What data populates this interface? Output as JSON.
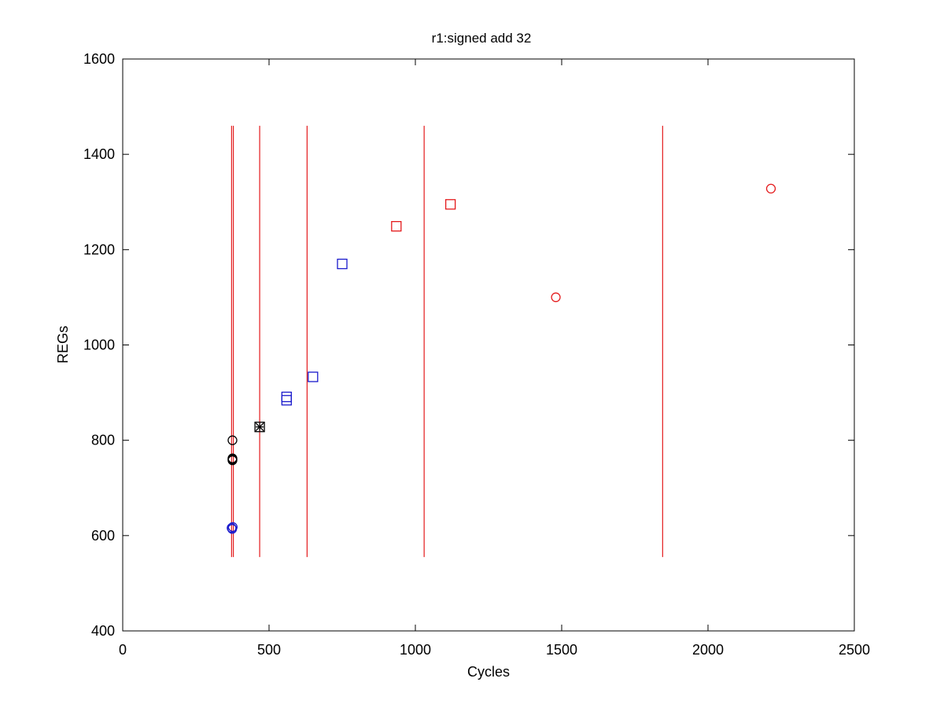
{
  "chart_data": {
    "type": "scatter",
    "title": "r1:signed add 32",
    "xlabel": "Cycles",
    "ylabel": "REGs",
    "xlim": [
      0,
      2500
    ],
    "ylim": [
      400,
      1600
    ],
    "xticks": [
      0,
      500,
      1000,
      1500,
      2000,
      2500
    ],
    "yticks": [
      400,
      600,
      800,
      1000,
      1200,
      1400,
      1600
    ],
    "grid": false,
    "vlines": {
      "color": "#e41a1c",
      "x": [
        372,
        378,
        468,
        630,
        1030,
        1845
      ],
      "ymin": 555,
      "ymax": 1460
    },
    "series": [
      {
        "marker": "circle",
        "color": "#000000",
        "points": [
          [
            375,
            800
          ],
          [
            375,
            762
          ],
          [
            375,
            760
          ],
          [
            375,
            758
          ]
        ]
      },
      {
        "marker": "x",
        "color": "#000000",
        "points": [
          [
            468,
            828
          ]
        ]
      },
      {
        "marker": "square",
        "color": "#000000",
        "points": [
          [
            468,
            828
          ]
        ]
      },
      {
        "marker": "circle",
        "color": "#1a1acc",
        "points": [
          [
            372,
            616
          ],
          [
            376,
            618
          ],
          [
            374,
            614
          ]
        ]
      },
      {
        "marker": "square",
        "color": "#1a1acc",
        "points": [
          [
            560,
            891
          ],
          [
            560,
            884
          ],
          [
            650,
            933
          ],
          [
            750,
            1170
          ]
        ]
      },
      {
        "marker": "square",
        "color": "#e41a1c",
        "points": [
          [
            935,
            1249
          ],
          [
            1120,
            1295
          ]
        ]
      },
      {
        "marker": "circle",
        "color": "#e41a1c",
        "points": [
          [
            1480,
            1100
          ],
          [
            2215,
            1328
          ]
        ]
      }
    ]
  }
}
